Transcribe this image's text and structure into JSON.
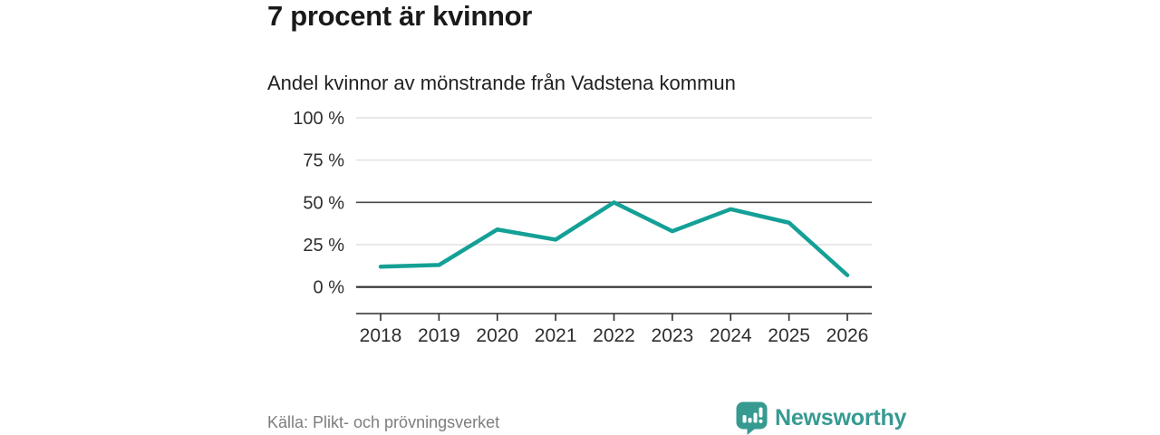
{
  "header": {
    "title": "7 procent är kvinnor",
    "subtitle": "Andel kvinnor av mönstrande från Vadstena kommun"
  },
  "chart_data": {
    "type": "line",
    "title": "Andel kvinnor av mönstrande från Vadstena kommun",
    "categories": [
      "2018",
      "2019",
      "2020",
      "2021",
      "2022",
      "2023",
      "2024",
      "2025",
      "2026"
    ],
    "series": [
      {
        "name": "Andel kvinnor",
        "values": [
          12,
          13,
          34,
          28,
          50,
          33,
          46,
          38,
          7
        ]
      }
    ],
    "xlabel": "",
    "ylabel": "",
    "ylim": [
      0,
      100
    ],
    "yticks": [
      0,
      25,
      50,
      75,
      100
    ],
    "ytick_labels": [
      "0 %",
      "25 %",
      "50 %",
      "75 %",
      "100 %"
    ],
    "emphasized_gridlines": [
      0,
      50
    ],
    "grid": true,
    "legend_position": "none",
    "colors": {
      "line": "#14a096",
      "grid_light": "#d9d9d9",
      "grid_mid": "#4a4a4a",
      "axis_dark": "#2d2d2d",
      "tick_label": "#2e2e2e"
    }
  },
  "footer": {
    "source": "Källa: Plikt- och prövningsverket",
    "brand_name": "Newsworthy",
    "brand_color": "#379a91",
    "logo_icon": "speech-bubble-bar-chart-exclamation-icon"
  }
}
